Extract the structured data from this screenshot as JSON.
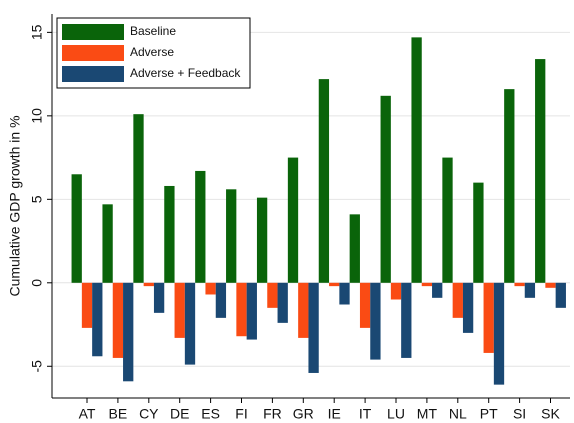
{
  "chart_data": {
    "type": "bar",
    "y_label": "Cumulative GDP growth in %",
    "categories": [
      "AT",
      "BE",
      "CY",
      "DE",
      "ES",
      "FI",
      "FR",
      "GR",
      "IE",
      "IT",
      "LU",
      "MT",
      "NL",
      "PT",
      "SI",
      "SK"
    ],
    "series": [
      {
        "name": "Baseline",
        "color": "#0a640a",
        "values": [
          6.5,
          4.7,
          10.1,
          5.8,
          6.7,
          5.6,
          5.1,
          7.5,
          12.2,
          4.1,
          11.2,
          14.7,
          7.5,
          6.0,
          11.6,
          13.4
        ]
      },
      {
        "name": "Adverse",
        "color": "#fa4b14",
        "values": [
          -2.7,
          -4.5,
          -0.2,
          -3.3,
          -0.7,
          -3.2,
          -1.5,
          -3.3,
          -0.2,
          -2.7,
          -1.0,
          -0.2,
          -2.1,
          -4.2,
          -0.2,
          -0.3
        ]
      },
      {
        "name": "Adverse + Feedback",
        "color": "#1a4873",
        "values": [
          -4.4,
          -5.9,
          -1.8,
          -4.9,
          -2.1,
          -3.4,
          -2.4,
          -5.4,
          -1.3,
          -4.6,
          -4.5,
          -0.9,
          -3.0,
          -6.1,
          -0.9,
          -1.5
        ]
      }
    ],
    "ylim": [
      -6.9,
      16.1
    ],
    "yticks": [
      -5,
      0,
      5,
      10,
      15
    ],
    "grid": true,
    "legend": "top-left"
  }
}
